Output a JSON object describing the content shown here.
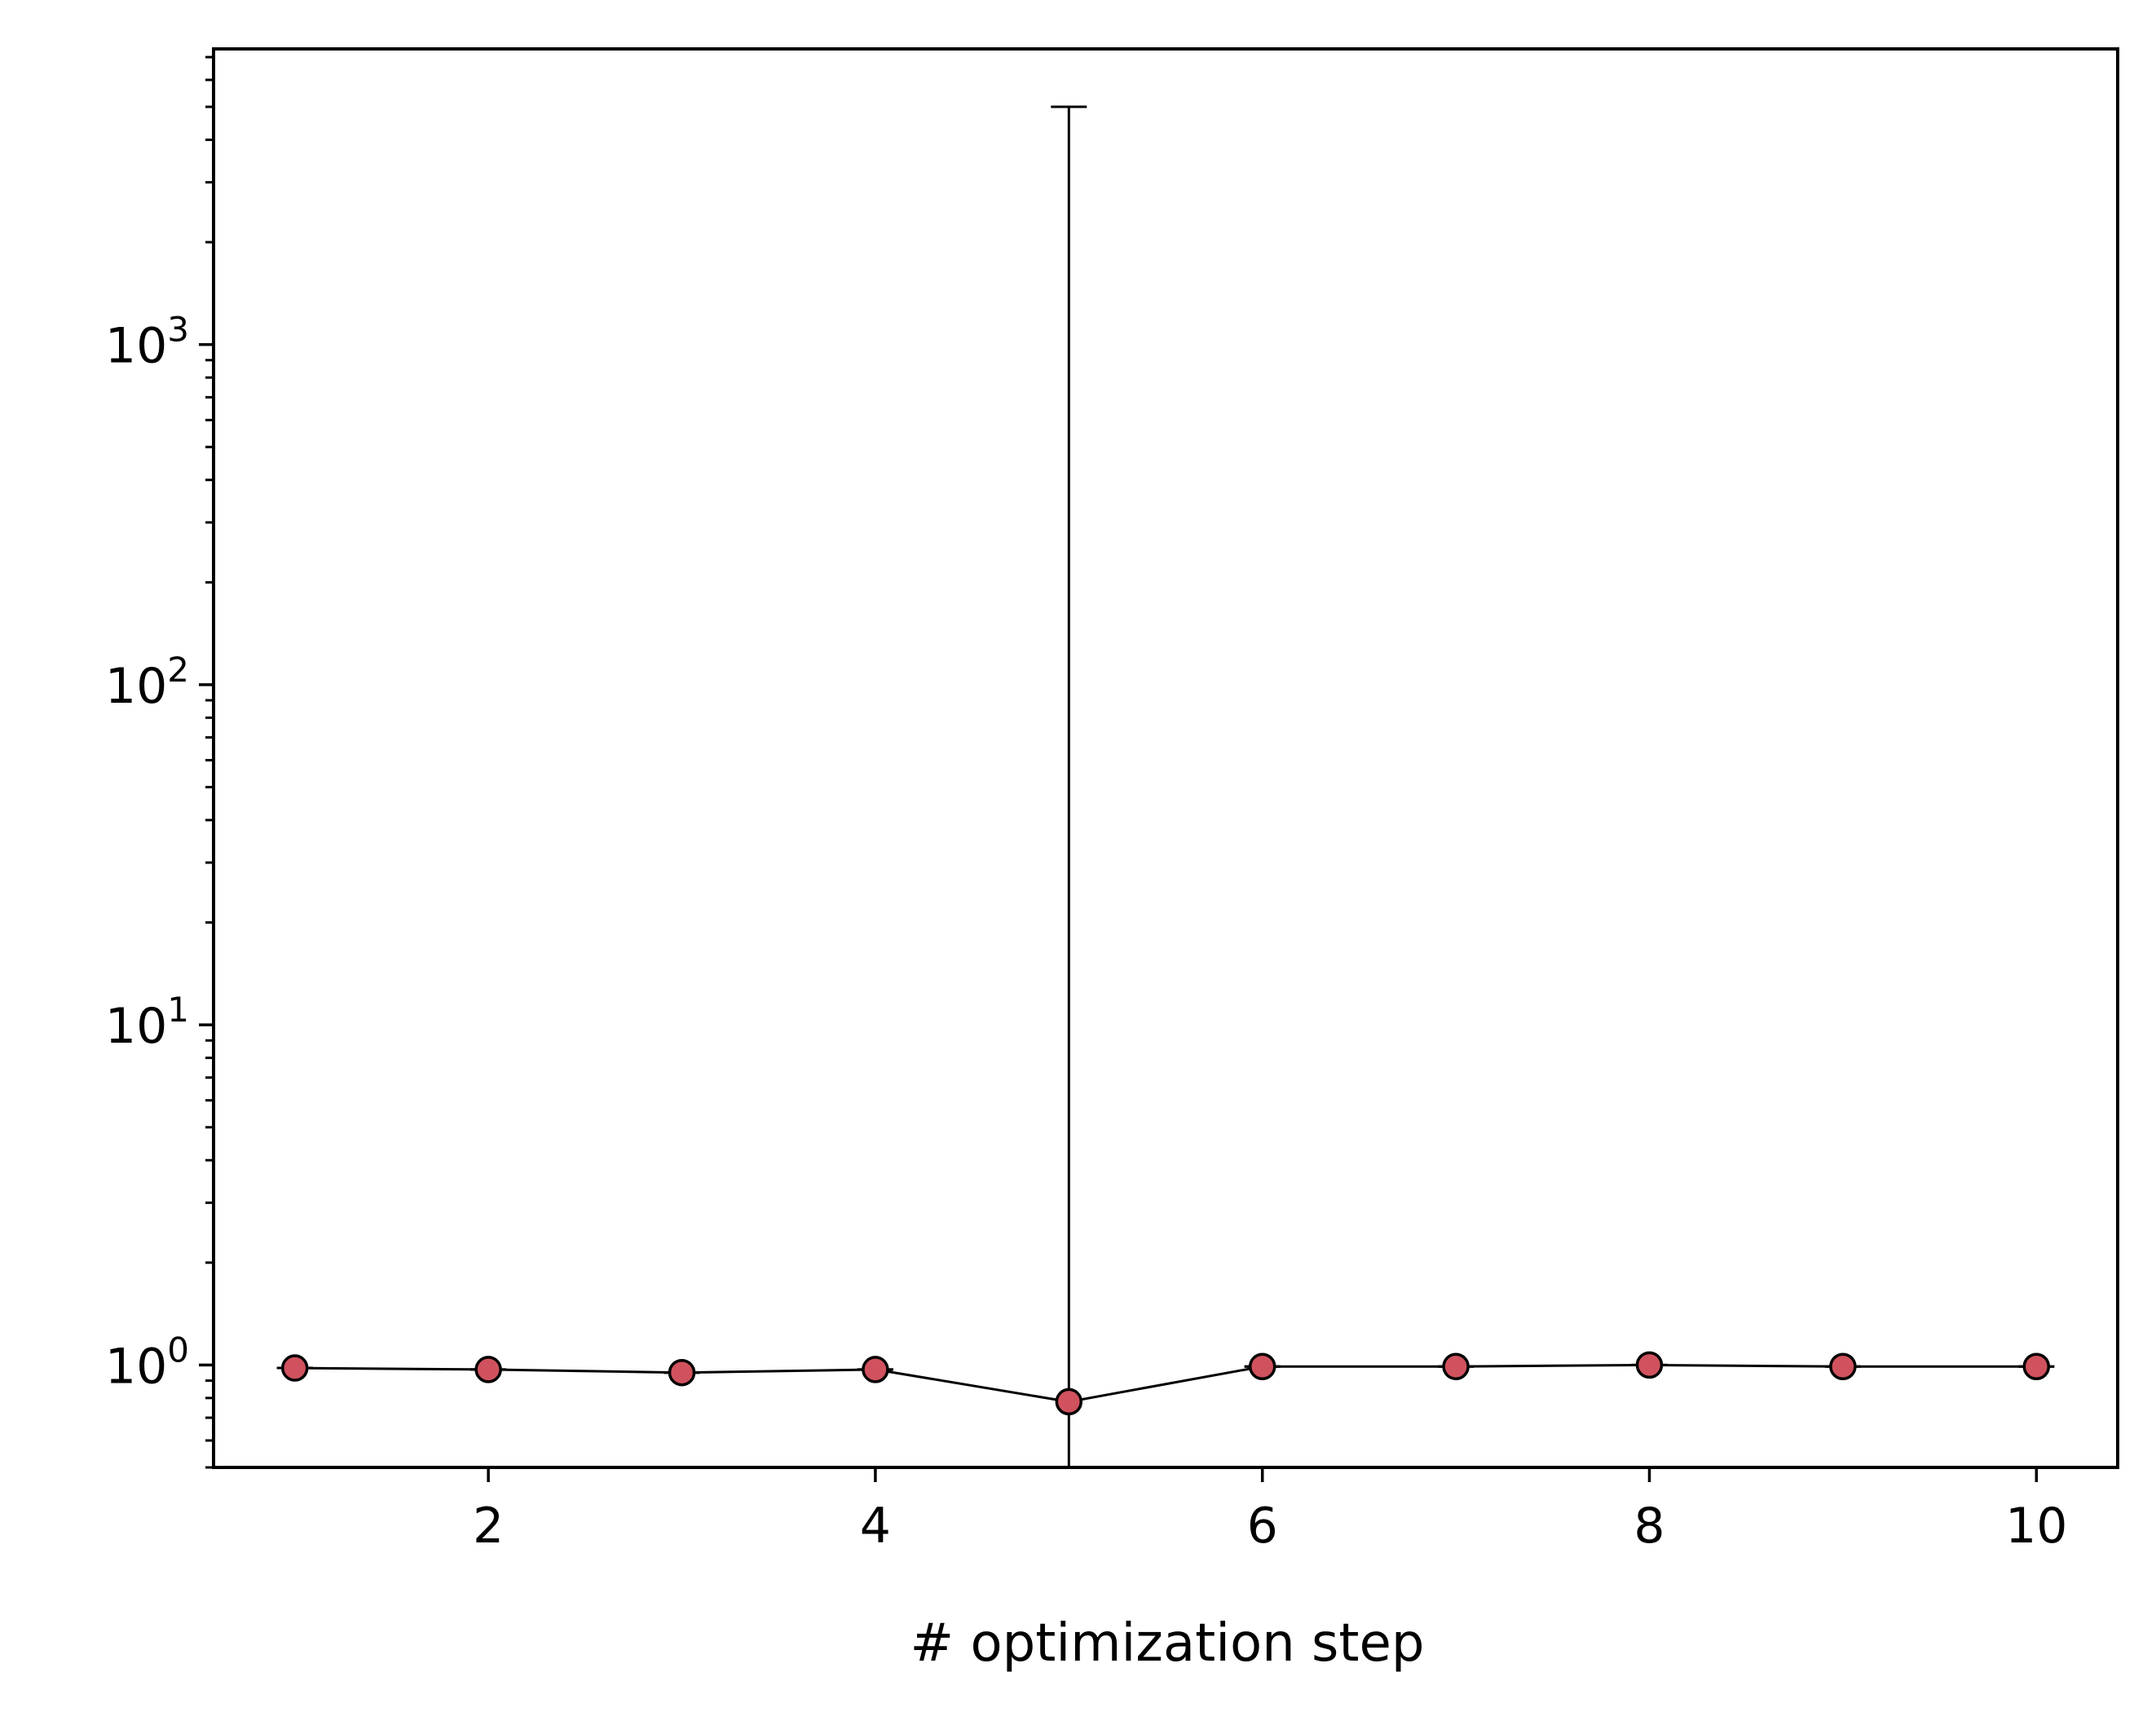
{
  "chart_data": {
    "type": "line",
    "title": "",
    "xlabel": "# optimization step",
    "ylabel": "",
    "xscale": "linear",
    "yscale": "log",
    "xlim": [
      0.58,
      10.42
    ],
    "ylim": [
      0.5,
      7400
    ],
    "grid": false,
    "legend": "none",
    "x": [
      1,
      2,
      3,
      4,
      5,
      6,
      7,
      8,
      9,
      10
    ],
    "series": [
      {
        "values": [
          0.98,
          0.97,
          0.95,
          0.97,
          0.78,
          0.99,
          0.99,
          1.0,
          0.99,
          0.99
        ],
        "error_upper": [
          0.98,
          0.97,
          0.95,
          0.97,
          5000,
          0.99,
          0.99,
          1.0,
          0.99,
          0.99
        ],
        "error_lower": [
          0.98,
          0.97,
          0.95,
          0.97,
          0.5,
          0.99,
          0.99,
          1.0,
          0.99,
          0.99
        ],
        "line_color": "#000000",
        "marker_fill": "#d0525e",
        "marker_edge": "#000000"
      }
    ],
    "xticks": [
      {
        "value": 2,
        "label": "2"
      },
      {
        "value": 4,
        "label": "4"
      },
      {
        "value": 6,
        "label": "6"
      },
      {
        "value": 8,
        "label": "8"
      },
      {
        "value": 10,
        "label": "10"
      }
    ],
    "yticks": [
      {
        "value": 1,
        "base": "10",
        "exp": "0"
      },
      {
        "value": 10,
        "base": "10",
        "exp": "1"
      },
      {
        "value": 100,
        "base": "10",
        "exp": "2"
      },
      {
        "value": 1000,
        "base": "10",
        "exp": "3"
      }
    ]
  }
}
